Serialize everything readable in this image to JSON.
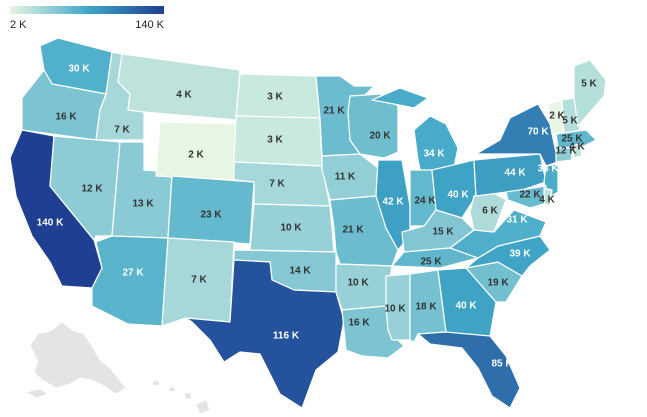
{
  "legend": {
    "min_label": "2 K",
    "max_label": "140 K",
    "color_low": "#e6f6e3",
    "color_mid": "#41a8c8",
    "color_high": "#1f3f93"
  },
  "chart_data": {
    "type": "choropleth",
    "title": "",
    "value_range": [
      2000,
      140000
    ],
    "states": [
      {
        "abbr": "WA",
        "value": 30000,
        "label": "30 K"
      },
      {
        "abbr": "OR",
        "value": 16000,
        "label": "16 K"
      },
      {
        "abbr": "CA",
        "value": 140000,
        "label": "140 K"
      },
      {
        "abbr": "ID",
        "value": 7000,
        "label": "7 K"
      },
      {
        "abbr": "NV",
        "value": 12000,
        "label": "12 K"
      },
      {
        "abbr": "UT",
        "value": 13000,
        "label": "13 K"
      },
      {
        "abbr": "AZ",
        "value": 27000,
        "label": "27 K"
      },
      {
        "abbr": "MT",
        "value": 4000,
        "label": "4 K"
      },
      {
        "abbr": "WY",
        "value": 2000,
        "label": "2 K"
      },
      {
        "abbr": "CO",
        "value": 23000,
        "label": "23 K"
      },
      {
        "abbr": "NM",
        "value": 7000,
        "label": "7 K"
      },
      {
        "abbr": "ND",
        "value": 3000,
        "label": "3 K"
      },
      {
        "abbr": "SD",
        "value": 3000,
        "label": "3 K"
      },
      {
        "abbr": "NE",
        "value": 7000,
        "label": "7 K"
      },
      {
        "abbr": "KS",
        "value": 10000,
        "label": "10 K"
      },
      {
        "abbr": "OK",
        "value": 14000,
        "label": "14 K"
      },
      {
        "abbr": "TX",
        "value": 116000,
        "label": "116 K"
      },
      {
        "abbr": "MN",
        "value": 21000,
        "label": "21 K"
      },
      {
        "abbr": "IA",
        "value": 11000,
        "label": "11 K"
      },
      {
        "abbr": "MO",
        "value": 21000,
        "label": "21 K"
      },
      {
        "abbr": "AR",
        "value": 10000,
        "label": "10 K"
      },
      {
        "abbr": "LA",
        "value": 16000,
        "label": "16 K"
      },
      {
        "abbr": "WI",
        "value": 20000,
        "label": "20 K"
      },
      {
        "abbr": "IL",
        "value": 42000,
        "label": "42 K"
      },
      {
        "abbr": "MI",
        "value": 34000,
        "label": "34 K"
      },
      {
        "abbr": "IN",
        "value": 24000,
        "label": "24 K"
      },
      {
        "abbr": "OH",
        "value": 40000,
        "label": "40 K"
      },
      {
        "abbr": "KY",
        "value": 15000,
        "label": "15 K"
      },
      {
        "abbr": "TN",
        "value": 25000,
        "label": "25 K"
      },
      {
        "abbr": "MS",
        "value": 10000,
        "label": "10 K"
      },
      {
        "abbr": "AL",
        "value": 18000,
        "label": "18 K"
      },
      {
        "abbr": "GA",
        "value": 40000,
        "label": "40 K"
      },
      {
        "abbr": "FL",
        "value": 85000,
        "label": "85 K"
      },
      {
        "abbr": "SC",
        "value": 19000,
        "label": "19 K"
      },
      {
        "abbr": "NC",
        "value": 39000,
        "label": "39 K"
      },
      {
        "abbr": "VA",
        "value": 31000,
        "label": "31 K"
      },
      {
        "abbr": "WV",
        "value": 6000,
        "label": "6 K"
      },
      {
        "abbr": "PA",
        "value": 44000,
        "label": "44 K"
      },
      {
        "abbr": "NY",
        "value": 70000,
        "label": "70 K"
      },
      {
        "abbr": "NJ",
        "value": 33000,
        "label": "33 K"
      },
      {
        "abbr": "MD",
        "value": 22000,
        "label": "22 K"
      },
      {
        "abbr": "DE",
        "value": 4000,
        "label": "4 K"
      },
      {
        "abbr": "VT",
        "value": 2000,
        "label": "2 K"
      },
      {
        "abbr": "NH",
        "value": 5000,
        "label": "5 K"
      },
      {
        "abbr": "ME",
        "value": 5000,
        "label": "5 K"
      },
      {
        "abbr": "MA",
        "value": 25000,
        "label": "25 K"
      },
      {
        "abbr": "CT",
        "value": 12000,
        "label": "12 K"
      },
      {
        "abbr": "RI",
        "value": 4000,
        "label": "4 K"
      }
    ]
  }
}
